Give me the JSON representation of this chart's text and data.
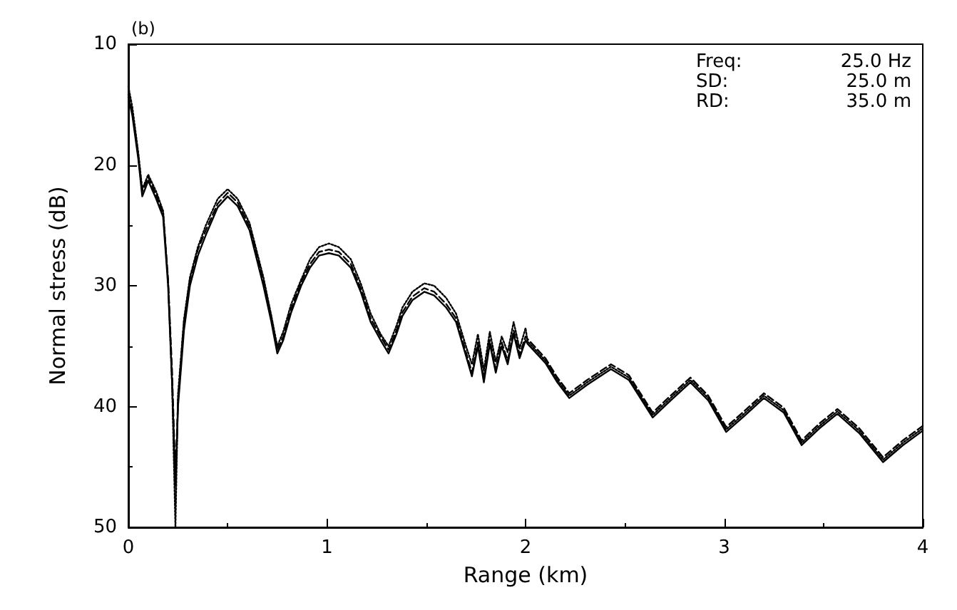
{
  "chart_data": {
    "type": "line",
    "xlabel": "Range (km)",
    "ylabel": "Normal stress (dB)",
    "xlim": [
      0,
      4
    ],
    "xticks": [
      0,
      1,
      2,
      3,
      4
    ],
    "ylim": [
      50,
      10
    ],
    "yticks": [
      10,
      20,
      30,
      40,
      50
    ],
    "grid": false,
    "marker": "none",
    "annotations": [
      "(b)",
      "Freq:  25.0 Hz",
      "SD:  25.0 m",
      "RD:  35.0 m"
    ],
    "x": [
      0,
      0.02,
      0.05,
      0.07,
      0.1,
      0.14,
      0.175,
      0.2,
      0.22,
      0.237,
      0.25,
      0.28,
      0.31,
      0.35,
      0.39,
      0.45,
      0.5,
      0.55,
      0.61,
      0.68,
      0.72,
      0.75,
      0.78,
      0.82,
      0.87,
      0.915,
      0.96,
      1.01,
      1.06,
      1.12,
      1.17,
      1.22,
      1.27,
      1.31,
      1.35,
      1.38,
      1.43,
      1.49,
      1.54,
      1.6,
      1.65,
      1.7,
      1.73,
      1.76,
      1.79,
      1.82,
      1.85,
      1.88,
      1.91,
      1.94,
      1.97,
      2.0,
      2.01,
      2.1,
      2.16,
      2.22,
      2.31,
      2.43,
      2.52,
      2.64,
      2.73,
      2.83,
      2.92,
      3.01,
      3.1,
      3.2,
      3.3,
      3.39,
      3.48,
      3.57,
      3.68,
      3.8,
      3.9,
      4.0
    ],
    "series": [
      {
        "color": "#000000",
        "line_style": "solid",
        "values": [
          14.4,
          15.9,
          19.5,
          22.6,
          21.3,
          22.8,
          24.3,
          30,
          38,
          46.6,
          40,
          33.7,
          30,
          27.5,
          25.8,
          23.5,
          22.6,
          23.4,
          25.4,
          30,
          33,
          35.6,
          34.5,
          32.2,
          30,
          28.5,
          27.5,
          27.3,
          27.5,
          28.5,
          30.5,
          33,
          34.5,
          35.6,
          34,
          32.5,
          31.2,
          30.5,
          30.8,
          31.8,
          33,
          35.8,
          37.5,
          35,
          38,
          34.8,
          37.2,
          35,
          36.5,
          34,
          36,
          34.5,
          34.8,
          36.4,
          38,
          39.3,
          38.2,
          36.9,
          37.8,
          40.9,
          39.5,
          38,
          39.5,
          42.1,
          40.8,
          39.3,
          40.5,
          43.2,
          41.8,
          40.6,
          42.2,
          44.6,
          43.2,
          42
        ]
      },
      {
        "color": "#000000",
        "line_style": "dashed",
        "values": [
          14.2,
          15.6,
          19.2,
          22.2,
          21,
          22.5,
          24,
          29.5,
          37,
          46,
          39.5,
          33,
          29.5,
          27,
          25.4,
          23.2,
          22.3,
          23.1,
          25.1,
          29.6,
          32.6,
          35.3,
          34.2,
          31.9,
          29.7,
          28.2,
          27.2,
          27,
          27.2,
          28.2,
          30.2,
          32.7,
          34.2,
          35.3,
          33.7,
          32.2,
          30.9,
          30.2,
          30.5,
          31.5,
          32.7,
          35.5,
          37.2,
          34.7,
          37.7,
          34.5,
          36.9,
          34.7,
          36.2,
          33.7,
          35.7,
          34.2,
          34.4,
          36,
          37.6,
          38.9,
          37.8,
          36.5,
          37.4,
          40.5,
          39.1,
          37.6,
          39.1,
          41.7,
          40.4,
          38.9,
          40.1,
          42.8,
          41.4,
          40.2,
          41.8,
          44.2,
          42.8,
          41.6
        ]
      },
      {
        "color": "#000000",
        "line_style": "dotted",
        "values": [
          13.5,
          15.2,
          19,
          22,
          20.8,
          22.2,
          23.8,
          29.5,
          38,
          50,
          39,
          32.8,
          29.3,
          26.8,
          25,
          22.8,
          22,
          22.8,
          24.8,
          29.3,
          32.5,
          35,
          33.8,
          31.5,
          29.5,
          27.8,
          26.8,
          26.5,
          26.8,
          27.8,
          29.8,
          32.3,
          34,
          35,
          33.3,
          31.8,
          30.5,
          29.8,
          30,
          31,
          32.3,
          35,
          36.5,
          34,
          37,
          33.8,
          36.3,
          34.2,
          35.5,
          33,
          35.2,
          33.5,
          34.6,
          36.2,
          37.8,
          39.1,
          38,
          36.7,
          37.6,
          40.7,
          39.3,
          37.8,
          39.3,
          41.9,
          40.6,
          39.1,
          40.3,
          43,
          41.6,
          40.4,
          42,
          44.4,
          43,
          41.8
        ]
      }
    ]
  }
}
